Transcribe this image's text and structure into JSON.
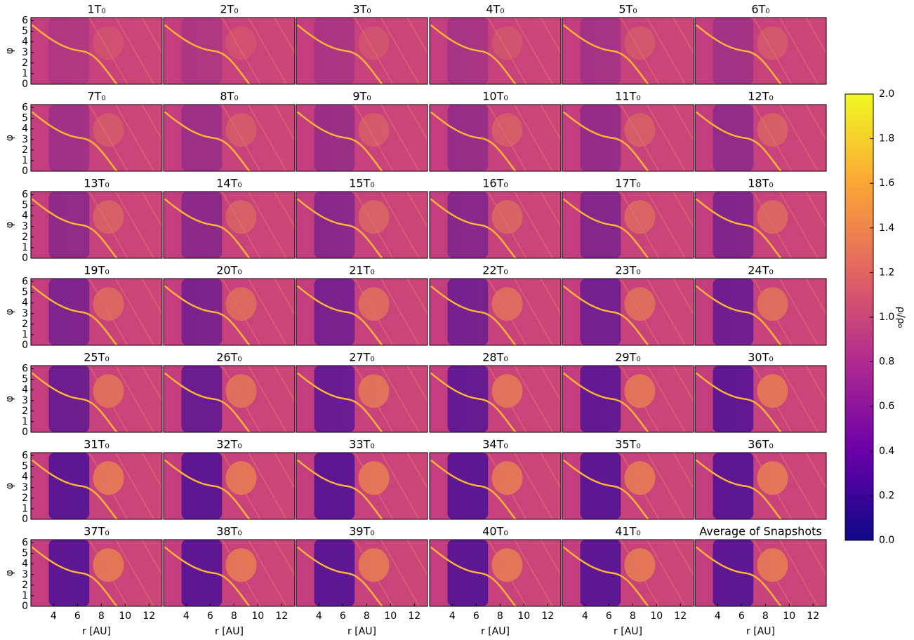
{
  "chart_data": {
    "type": "heatmap",
    "panel_titles": [
      "1T₀",
      "2T₀",
      "3T₀",
      "4T₀",
      "5T₀",
      "6T₀",
      "7T₀",
      "8T₀",
      "9T₀",
      "10T₀",
      "11T₀",
      "12T₀",
      "13T₀",
      "14T₀",
      "15T₀",
      "16T₀",
      "17T₀",
      "18T₀",
      "19T₀",
      "20T₀",
      "21T₀",
      "22T₀",
      "23T₀",
      "24T₀",
      "25T₀",
      "26T₀",
      "27T₀",
      "28T₀",
      "29T₀",
      "30T₀",
      "31T₀",
      "32T₀",
      "33T₀",
      "34T₀",
      "35T₀",
      "36T₀",
      "37T₀",
      "38T₀",
      "39T₀",
      "40T₀",
      "41T₀",
      "Average of Snapshots"
    ],
    "xlabel": "r [AU]",
    "ylabel": "φ",
    "xlim": [
      2.1,
      13.1
    ],
    "xticks": [
      4,
      6,
      8,
      10,
      12
    ],
    "ylim": [
      0,
      6.3
    ],
    "yticks": [
      0,
      1,
      2,
      3,
      4,
      5,
      6
    ],
    "colorbar_label": "ρᵢ/ρ₀",
    "clim": [
      0,
      2
    ],
    "colorbar_ticks": [
      {
        "value": 0,
        "label": "0.0"
      },
      {
        "value": 0.2,
        "label": "0.2"
      },
      {
        "value": 0.4,
        "label": "0.4"
      },
      {
        "value": 0.6,
        "label": "0.6"
      },
      {
        "value": 0.8,
        "label": "0.8"
      },
      {
        "value": 1,
        "label": "1.0"
      },
      {
        "value": 1.2,
        "label": "1.2"
      },
      {
        "value": 1.4,
        "label": "1.4"
      },
      {
        "value": 1.6,
        "label": "1.6"
      },
      {
        "value": 1.8,
        "label": "1.8"
      },
      {
        "value": 2,
        "label": "2.0"
      }
    ],
    "colormap": [
      "#0d0887",
      "#6a00a8",
      "#b12a90",
      "#e16462",
      "#fca636",
      "#f0f921"
    ]
  }
}
